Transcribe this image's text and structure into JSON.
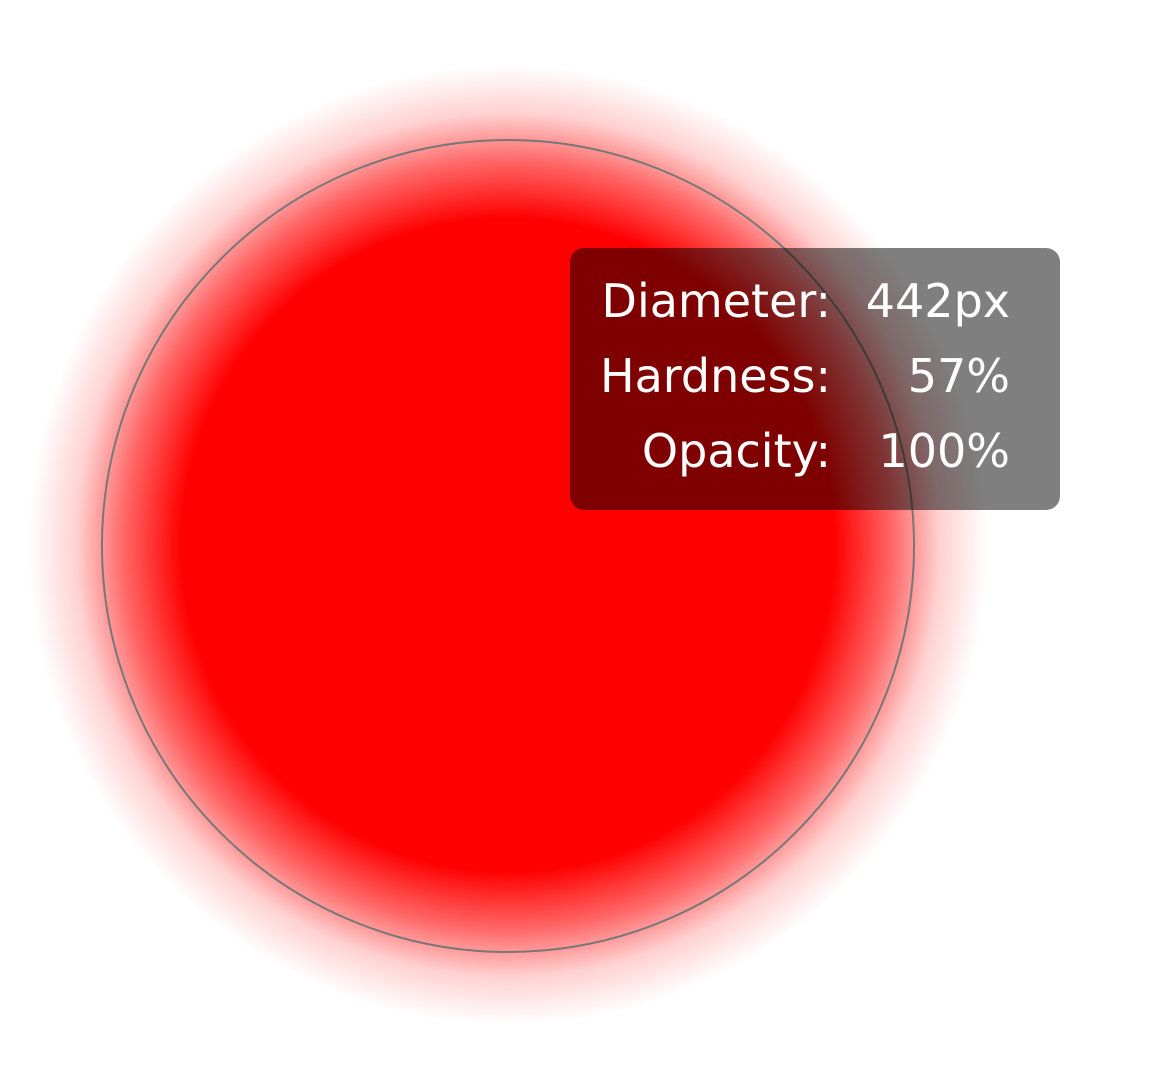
{
  "hud": {
    "rows": [
      {
        "label": "Diameter:",
        "value": "442px"
      },
      {
        "label": "Hardness:",
        "value": "57%"
      },
      {
        "label": "Opacity:",
        "value": "100%"
      }
    ]
  }
}
